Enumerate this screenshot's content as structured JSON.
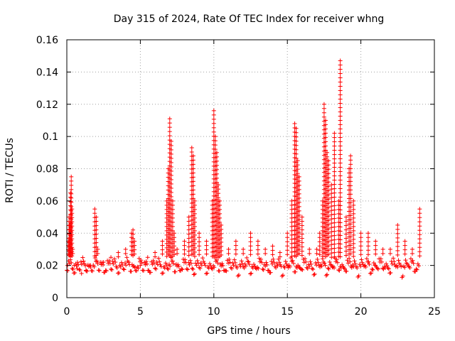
{
  "chart_data": {
    "type": "scatter",
    "title": "Day 315 of 2024, Rate Of TEC Index for receiver whng",
    "xlabel": "GPS time / hours",
    "ylabel": "ROTI / TECUs",
    "xlim": [
      0,
      25
    ],
    "ylim": [
      0,
      0.16
    ],
    "x_ticks": [
      0,
      5,
      10,
      15,
      20,
      25
    ],
    "x_tick_labels": [
      "0",
      "5",
      "10",
      "15",
      "20",
      "25"
    ],
    "y_ticks": [
      0,
      0.02,
      0.04,
      0.06,
      0.08,
      0.1,
      0.12,
      0.14,
      0.16
    ],
    "y_tick_labels": [
      "0",
      "0.02",
      "0.04",
      "0.06",
      "0.08",
      "0.1",
      "0.12",
      "0.14",
      "0.16"
    ],
    "grid": true,
    "marker": "+",
    "color": "#ff0000",
    "series": [
      {
        "name": "ROTI",
        "x": [
          0.05,
          0.1,
          0.15,
          0.2,
          0.25,
          0.3,
          0.35,
          0.4,
          0.5,
          0.7,
          1.0,
          1.3,
          1.6,
          1.9,
          2.0,
          2.1,
          2.5,
          3.0,
          3.5,
          4.0,
          4.4,
          4.5,
          4.6,
          5.0,
          5.5,
          6.0,
          6.5,
          6.8,
          6.9,
          7.0,
          7.1,
          7.2,
          7.3,
          7.5,
          8.0,
          8.3,
          8.5,
          8.6,
          8.7,
          9.0,
          9.5,
          9.9,
          10.0,
          10.1,
          10.2,
          10.3,
          10.4,
          10.5,
          11.0,
          11.5,
          12.0,
          12.5,
          13.0,
          13.5,
          14.0,
          14.5,
          15.0,
          15.3,
          15.5,
          15.6,
          15.7,
          15.8,
          16.0,
          16.5,
          17.0,
          17.2,
          17.4,
          17.5,
          17.6,
          17.7,
          17.8,
          18.0,
          18.2,
          18.5,
          18.6,
          19.0,
          19.2,
          19.3,
          19.5,
          20.0,
          20.5,
          21.0,
          21.5,
          22.0,
          22.5,
          23.0,
          23.5,
          24.0
        ],
        "y": [
          0.02,
          0.035,
          0.05,
          0.045,
          0.065,
          0.075,
          0.055,
          0.03,
          0.02,
          0.018,
          0.015,
          0.017,
          0.02,
          0.055,
          0.05,
          0.03,
          0.022,
          0.025,
          0.028,
          0.03,
          0.04,
          0.042,
          0.035,
          0.02,
          0.025,
          0.028,
          0.035,
          0.06,
          0.08,
          0.111,
          0.097,
          0.06,
          0.04,
          0.03,
          0.035,
          0.05,
          0.093,
          0.088,
          0.06,
          0.04,
          0.035,
          0.06,
          0.116,
          0.1,
          0.09,
          0.07,
          0.06,
          0.045,
          0.03,
          0.035,
          0.03,
          0.04,
          0.035,
          0.03,
          0.032,
          0.028,
          0.04,
          0.06,
          0.108,
          0.105,
          0.085,
          0.075,
          0.05,
          0.03,
          0.03,
          0.04,
          0.06,
          0.12,
          0.11,
          0.09,
          0.085,
          0.07,
          0.102,
          0.06,
          0.147,
          0.05,
          0.08,
          0.088,
          0.06,
          0.04,
          0.04,
          0.035,
          0.03,
          0.03,
          0.045,
          0.035,
          0.03,
          0.055
        ]
      }
    ]
  }
}
